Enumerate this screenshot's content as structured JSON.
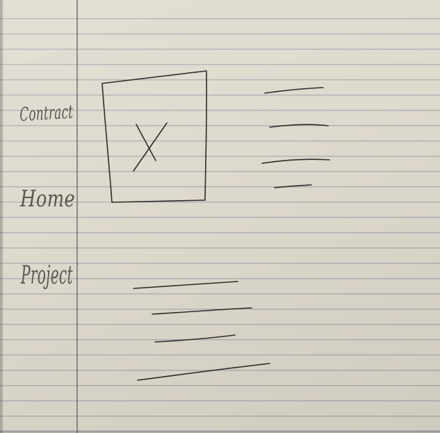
{
  "navigation": {
    "items": [
      {
        "id": "contact",
        "label": "Contract"
      },
      {
        "id": "home",
        "label": "Home"
      },
      {
        "id": "project",
        "label": "Project"
      }
    ]
  },
  "main": {
    "image_placeholder": {
      "icon": "image-placeholder-icon"
    }
  },
  "colors": {
    "paper": "#ddd8cb",
    "ink": "#2e2c2a",
    "ruled_line": "#787d96"
  }
}
